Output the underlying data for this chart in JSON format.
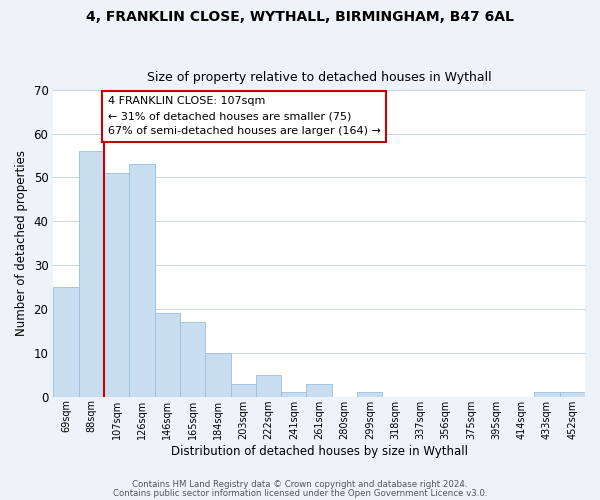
{
  "title1": "4, FRANKLIN CLOSE, WYTHALL, BIRMINGHAM, B47 6AL",
  "title2": "Size of property relative to detached houses in Wythall",
  "xlabel": "Distribution of detached houses by size in Wythall",
  "ylabel": "Number of detached properties",
  "bar_labels": [
    "69sqm",
    "88sqm",
    "107sqm",
    "126sqm",
    "146sqm",
    "165sqm",
    "184sqm",
    "203sqm",
    "222sqm",
    "241sqm",
    "261sqm",
    "280sqm",
    "299sqm",
    "318sqm",
    "337sqm",
    "356sqm",
    "375sqm",
    "395sqm",
    "414sqm",
    "433sqm",
    "452sqm"
  ],
  "bar_values": [
    25,
    56,
    51,
    53,
    19,
    17,
    10,
    3,
    5,
    1,
    3,
    0,
    1,
    0,
    0,
    0,
    0,
    0,
    0,
    1,
    1
  ],
  "bar_color": "#c9ddf1",
  "bar_edge_color": "#9bbedd",
  "highlight_line_color": "#cc0000",
  "annotation_box_color": "#ffffff",
  "annotation_box_edge_color": "#cc0000",
  "annotation_text": "4 FRANKLIN CLOSE: 107sqm\n← 31% of detached houses are smaller (75)\n67% of semi-detached houses are larger (164) →",
  "ylim": [
    0,
    70
  ],
  "yticks": [
    0,
    10,
    20,
    30,
    40,
    50,
    60,
    70
  ],
  "footnote1": "Contains HM Land Registry data © Crown copyright and database right 2024.",
  "footnote2": "Contains public sector information licensed under the Open Government Licence v3.0.",
  "background_color": "#eef2f9",
  "plot_background_color": "#ffffff"
}
